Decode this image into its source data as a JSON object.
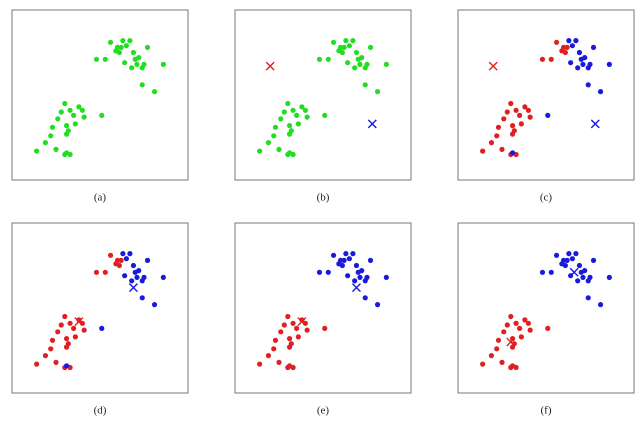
{
  "chart_data": [
    {
      "type": "scatter",
      "label": "(a)",
      "xlim": [
        0,
        10
      ],
      "ylim": [
        0,
        10
      ],
      "series": [
        {
          "color": "#22dd22",
          "x": [
            4.8,
            5.3,
            5.6,
            5.9,
            6.0,
            6.1,
            6.2,
            6.3,
            6.5,
            6.7,
            6.9,
            7.0,
            7.1,
            7.2,
            7.4,
            7.5,
            7.7,
            7.4,
            8.1,
            8.6,
            6.4,
            6.8,
            1.4,
            1.9,
            2.2,
            2.3,
            2.5,
            2.6,
            2.8,
            3.0,
            3.1,
            3.1,
            3.2,
            3.3,
            3.3,
            3.5,
            3.6,
            3.8,
            4.0,
            4.1,
            5.1,
            3.0,
            3.1
          ],
          "y": [
            7.1,
            7.1,
            8.1,
            7.6,
            7.8,
            7.5,
            7.8,
            8.2,
            7.9,
            8.2,
            7.5,
            7.1,
            6.8,
            7.2,
            6.6,
            6.8,
            7.8,
            5.6,
            5.2,
            6.8,
            6.9,
            6.6,
            1.7,
            2.2,
            2.6,
            3.1,
            1.8,
            3.6,
            4.0,
            4.5,
            2.7,
            3.2,
            2.9,
            4.1,
            1.5,
            3.8,
            3.3,
            4.3,
            4.1,
            3.7,
            3.8,
            1.5,
            1.6
          ]
        }
      ],
      "centroids": []
    },
    {
      "type": "scatter",
      "label": "(b)",
      "xlim": [
        0,
        10
      ],
      "ylim": [
        0,
        10
      ],
      "series": [
        {
          "color": "#22dd22",
          "x": [
            4.8,
            5.3,
            5.6,
            5.9,
            6.0,
            6.1,
            6.2,
            6.3,
            6.5,
            6.7,
            6.9,
            7.0,
            7.1,
            7.2,
            7.4,
            7.5,
            7.7,
            7.4,
            8.1,
            8.6,
            6.4,
            6.8,
            1.4,
            1.9,
            2.2,
            2.3,
            2.5,
            2.6,
            2.8,
            3.0,
            3.1,
            3.1,
            3.2,
            3.3,
            3.3,
            3.5,
            3.6,
            3.8,
            4.0,
            4.1,
            5.1,
            3.0,
            3.1
          ],
          "y": [
            7.1,
            7.1,
            8.1,
            7.6,
            7.8,
            7.5,
            7.8,
            8.2,
            7.9,
            8.2,
            7.5,
            7.1,
            6.8,
            7.2,
            6.6,
            6.8,
            7.8,
            5.6,
            5.2,
            6.8,
            6.9,
            6.6,
            1.7,
            2.2,
            2.6,
            3.1,
            1.8,
            3.6,
            4.0,
            4.5,
            2.7,
            3.2,
            2.9,
            4.1,
            1.5,
            3.8,
            3.3,
            4.3,
            4.1,
            3.7,
            3.8,
            1.5,
            1.6
          ]
        }
      ],
      "centroids": [
        {
          "color": "#e02020",
          "x": 2.0,
          "y": 6.7
        },
        {
          "color": "#1a1adb",
          "x": 7.8,
          "y": 3.3
        }
      ]
    },
    {
      "type": "scatter",
      "label": "(c)",
      "xlim": [
        0,
        10
      ],
      "ylim": [
        0,
        10
      ],
      "series": [
        {
          "color": "#e02020",
          "x": [
            4.8,
            5.3,
            5.6,
            5.9,
            6.0,
            6.1,
            6.2,
            1.4,
            1.9,
            2.2,
            2.3,
            2.5,
            2.6,
            2.8,
            3.0,
            3.1,
            3.1,
            3.2,
            3.3,
            3.3,
            3.5,
            3.6,
            3.8,
            4.0,
            4.1,
            3.0
          ],
          "y": [
            7.1,
            7.1,
            8.1,
            7.6,
            7.8,
            7.5,
            7.8,
            1.7,
            2.2,
            2.6,
            3.1,
            1.8,
            3.6,
            4.0,
            4.5,
            2.7,
            3.2,
            2.9,
            4.1,
            1.5,
            3.8,
            3.3,
            4.3,
            4.1,
            3.7,
            1.5
          ]
        },
        {
          "color": "#1a1adb",
          "x": [
            6.3,
            6.5,
            6.7,
            6.9,
            7.0,
            7.1,
            7.2,
            7.4,
            7.5,
            7.7,
            7.4,
            8.1,
            8.6,
            6.4,
            6.8,
            5.1,
            3.1
          ],
          "y": [
            8.2,
            7.9,
            8.2,
            7.5,
            7.1,
            6.8,
            7.2,
            6.6,
            6.8,
            7.8,
            5.6,
            5.2,
            6.8,
            6.9,
            6.6,
            3.8,
            1.6
          ]
        }
      ],
      "centroids": [
        {
          "color": "#e02020",
          "x": 2.0,
          "y": 6.7
        },
        {
          "color": "#1a1adb",
          "x": 7.8,
          "y": 3.3
        }
      ]
    },
    {
      "type": "scatter",
      "label": "(d)",
      "xlim": [
        0,
        10
      ],
      "ylim": [
        0,
        10
      ],
      "series": [
        {
          "color": "#e02020",
          "x": [
            4.8,
            5.3,
            5.6,
            5.9,
            6.0,
            6.1,
            6.2,
            1.4,
            1.9,
            2.2,
            2.3,
            2.5,
            2.6,
            2.8,
            3.0,
            3.1,
            3.1,
            3.2,
            3.3,
            3.3,
            3.5,
            3.6,
            3.8,
            4.0,
            4.1,
            3.0
          ],
          "y": [
            7.1,
            7.1,
            8.1,
            7.6,
            7.8,
            7.5,
            7.8,
            1.7,
            2.2,
            2.6,
            3.1,
            1.8,
            3.6,
            4.0,
            4.5,
            2.7,
            3.2,
            2.9,
            4.1,
            1.5,
            3.8,
            3.3,
            4.3,
            4.1,
            3.7,
            1.5
          ]
        },
        {
          "color": "#1a1adb",
          "x": [
            6.3,
            6.5,
            6.7,
            6.9,
            7.0,
            7.1,
            7.2,
            7.4,
            7.5,
            7.7,
            7.4,
            8.1,
            8.6,
            6.4,
            6.8,
            5.1,
            3.1
          ],
          "y": [
            8.2,
            7.9,
            8.2,
            7.5,
            7.1,
            6.8,
            7.2,
            6.6,
            6.8,
            7.8,
            5.6,
            5.2,
            6.8,
            6.9,
            6.6,
            3.8,
            1.6
          ]
        }
      ],
      "centroids": [
        {
          "color": "#e02020",
          "x": 3.8,
          "y": 4.2
        },
        {
          "color": "#1a1adb",
          "x": 6.9,
          "y": 6.2
        }
      ]
    },
    {
      "type": "scatter",
      "label": "(e)",
      "xlim": [
        0,
        10
      ],
      "ylim": [
        0,
        10
      ],
      "series": [
        {
          "color": "#e02020",
          "x": [
            1.4,
            1.9,
            2.2,
            2.3,
            2.5,
            2.6,
            2.8,
            3.0,
            3.1,
            3.1,
            3.2,
            3.3,
            3.3,
            3.5,
            3.6,
            3.8,
            4.0,
            4.1,
            5.1,
            3.0,
            3.1
          ],
          "y": [
            1.7,
            2.2,
            2.6,
            3.1,
            1.8,
            3.6,
            4.0,
            4.5,
            2.7,
            3.2,
            2.9,
            4.1,
            1.5,
            3.8,
            3.3,
            4.3,
            4.1,
            3.7,
            3.8,
            1.5,
            1.6
          ]
        },
        {
          "color": "#1a1adb",
          "x": [
            4.8,
            5.3,
            5.6,
            5.9,
            6.0,
            6.1,
            6.2,
            6.3,
            6.5,
            6.7,
            6.9,
            7.0,
            7.1,
            7.2,
            7.4,
            7.5,
            7.7,
            7.4,
            8.1,
            8.6,
            6.4,
            6.8
          ],
          "y": [
            7.1,
            7.1,
            8.1,
            7.6,
            7.8,
            7.5,
            7.8,
            8.2,
            7.9,
            8.2,
            7.5,
            7.1,
            6.8,
            7.2,
            6.6,
            6.8,
            7.8,
            5.6,
            5.2,
            6.8,
            6.9,
            6.6
          ]
        }
      ],
      "centroids": [
        {
          "color": "#e02020",
          "x": 3.8,
          "y": 4.2
        },
        {
          "color": "#1a1adb",
          "x": 6.9,
          "y": 6.2
        }
      ]
    },
    {
      "type": "scatter",
      "label": "(f)",
      "xlim": [
        0,
        10
      ],
      "ylim": [
        0,
        10
      ],
      "series": [
        {
          "color": "#e02020",
          "x": [
            1.4,
            1.9,
            2.2,
            2.3,
            2.5,
            2.6,
            2.8,
            3.0,
            3.1,
            3.1,
            3.2,
            3.3,
            3.3,
            3.5,
            3.6,
            3.8,
            4.0,
            4.1,
            5.1,
            3.0,
            3.1
          ],
          "y": [
            1.7,
            2.2,
            2.6,
            3.1,
            1.8,
            3.6,
            4.0,
            4.5,
            2.7,
            3.2,
            2.9,
            4.1,
            1.5,
            3.8,
            3.3,
            4.3,
            4.1,
            3.7,
            3.8,
            1.5,
            1.6
          ]
        },
        {
          "color": "#1a1adb",
          "x": [
            4.8,
            5.3,
            5.6,
            5.9,
            6.0,
            6.1,
            6.2,
            6.3,
            6.5,
            6.7,
            6.9,
            7.0,
            7.1,
            7.2,
            7.4,
            7.5,
            7.7,
            7.4,
            8.1,
            8.6,
            6.4,
            6.8
          ],
          "y": [
            7.1,
            7.1,
            8.1,
            7.6,
            7.8,
            7.5,
            7.8,
            8.2,
            7.9,
            8.2,
            7.5,
            7.1,
            6.8,
            7.2,
            6.6,
            6.8,
            7.8,
            5.6,
            5.2,
            6.8,
            6.9,
            6.6
          ]
        }
      ],
      "centroids": [
        {
          "color": "#e02020",
          "x": 3.0,
          "y": 3.0
        },
        {
          "color": "#1a1adb",
          "x": 6.6,
          "y": 7.1
        }
      ]
    }
  ]
}
